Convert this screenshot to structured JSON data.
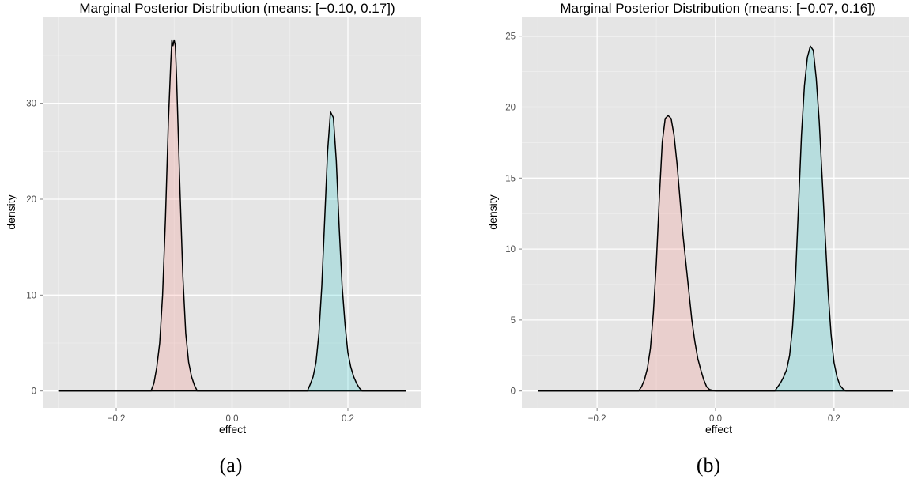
{
  "chart_data": [
    {
      "type": "area",
      "title": "Marginal Posterior Distribution (means: [−0.10, 0.17])",
      "xlabel": "effect",
      "ylabel": "density",
      "caption": "(a)",
      "xlim": [
        -0.3,
        0.3
      ],
      "ylim": [
        0,
        37
      ],
      "x_ticks": [
        -0.2,
        0.0,
        0.2
      ],
      "x_tick_labels": [
        "−0.2",
        "0.0",
        "0.2"
      ],
      "y_ticks": [
        0,
        10,
        20,
        30
      ],
      "y_tick_labels": [
        "0",
        "10",
        "20",
        "30"
      ],
      "grid": true,
      "background": "#e5e5e5",
      "legend": "none",
      "series": [
        {
          "color": "#f8766d",
          "x": [
            -0.3,
            -0.14,
            -0.135,
            -0.13,
            -0.125,
            -0.12,
            -0.115,
            -0.11,
            -0.106,
            -0.104,
            -0.102,
            -0.1,
            -0.098,
            -0.096,
            -0.094,
            -0.09,
            -0.085,
            -0.08,
            -0.075,
            -0.07,
            -0.065,
            -0.06,
            0.3
          ],
          "y": [
            0,
            0,
            0.8,
            2.5,
            5,
            10,
            18,
            28,
            34,
            36.6,
            36,
            36.6,
            36,
            33,
            29,
            21,
            12,
            6,
            3,
            1.5,
            0.6,
            0,
            0
          ]
        },
        {
          "color": "#00bfc4",
          "x": [
            -0.3,
            0.13,
            0.135,
            0.14,
            0.145,
            0.15,
            0.155,
            0.16,
            0.165,
            0.17,
            0.175,
            0.18,
            0.185,
            0.19,
            0.195,
            0.2,
            0.205,
            0.21,
            0.215,
            0.22,
            0.225,
            0.3
          ],
          "y": [
            0,
            0,
            0.7,
            1.5,
            3,
            6,
            11,
            18,
            25,
            29.1,
            28.5,
            24,
            17,
            11,
            7,
            4,
            2.5,
            1.5,
            0.8,
            0.3,
            0,
            0
          ]
        }
      ]
    },
    {
      "type": "area",
      "title": "Marginal Posterior Distribution (means: [−0.07, 0.16])",
      "xlabel": "effect",
      "ylabel": "density",
      "caption": "(b)",
      "xlim": [
        -0.3,
        0.3
      ],
      "ylim": [
        0,
        25
      ],
      "x_ticks": [
        -0.2,
        0.0,
        0.2
      ],
      "x_tick_labels": [
        "−0.2",
        "0.0",
        "0.2"
      ],
      "y_ticks": [
        0,
        5,
        10,
        15,
        20,
        25
      ],
      "y_tick_labels": [
        "0",
        "5",
        "10",
        "15",
        "20",
        "25"
      ],
      "grid": true,
      "background": "#e5e5e5",
      "legend": "none",
      "series": [
        {
          "color": "#f8766d",
          "x": [
            -0.3,
            -0.13,
            -0.125,
            -0.12,
            -0.115,
            -0.11,
            -0.105,
            -0.1,
            -0.095,
            -0.09,
            -0.085,
            -0.08,
            -0.075,
            -0.07,
            -0.065,
            -0.06,
            -0.055,
            -0.05,
            -0.045,
            -0.04,
            -0.035,
            -0.03,
            -0.025,
            -0.02,
            -0.015,
            -0.01,
            0.0,
            0.3
          ],
          "y": [
            0,
            0,
            0.3,
            0.8,
            1.6,
            3,
            5.5,
            9,
            13.5,
            17.5,
            19.2,
            19.4,
            19.2,
            18,
            16,
            13.5,
            11,
            9,
            7,
            5,
            3.5,
            2.3,
            1.5,
            0.8,
            0.3,
            0.1,
            0,
            0
          ]
        },
        {
          "color": "#00bfc4",
          "x": [
            -0.3,
            0.1,
            0.105,
            0.11,
            0.115,
            0.12,
            0.125,
            0.13,
            0.135,
            0.14,
            0.145,
            0.15,
            0.155,
            0.16,
            0.165,
            0.17,
            0.175,
            0.18,
            0.185,
            0.19,
            0.195,
            0.2,
            0.205,
            0.21,
            0.215,
            0.22,
            0.3
          ],
          "y": [
            0,
            0,
            0.3,
            0.6,
            1.0,
            1.5,
            2.5,
            4.5,
            8,
            13,
            18,
            21.5,
            23.5,
            24.3,
            24,
            22,
            19,
            15,
            11,
            7,
            4,
            2,
            1,
            0.4,
            0.15,
            0,
            0
          ]
        }
      ]
    }
  ]
}
